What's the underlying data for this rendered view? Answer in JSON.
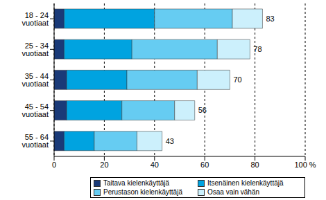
{
  "chart_data": {
    "type": "bar",
    "orientation": "horizontal",
    "stacked": true,
    "grid": true,
    "legend": "bottom",
    "categories": [
      "18 - 24 vuotiaat",
      "25 - 34 vuotiaat",
      "35 - 44 vuotiaat",
      "45 - 54 vuotiaat",
      "55 - 64 vuotiaat"
    ],
    "series": [
      {
        "name": "Taitava kielenkäyttäjä",
        "color": "#1a3a78",
        "values": [
          4,
          4,
          5,
          5,
          4
        ]
      },
      {
        "name": "Itsenäinen kielenkäyttäjä",
        "color": "#00a3e0",
        "values": [
          36,
          27,
          24,
          22,
          12
        ]
      },
      {
        "name": "Perustason kielenkäyttäjä",
        "color": "#66ccf2",
        "values": [
          31,
          34,
          28,
          21,
          17
        ]
      },
      {
        "name": "Osaa vain vähän",
        "color": "#ccf0fc",
        "values": [
          12,
          13,
          13,
          8,
          10
        ]
      }
    ],
    "totals": [
      83,
      78,
      70,
      56,
      43
    ],
    "xlim": [
      0,
      100
    ],
    "xticks": [
      0,
      20,
      40,
      60,
      80,
      {
        "value": 100,
        "label": "100 %"
      }
    ]
  }
}
